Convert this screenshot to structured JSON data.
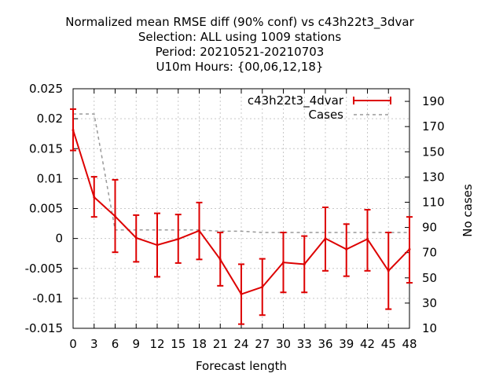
{
  "chart_data": {
    "type": "line",
    "title_lines": [
      "Normalized mean RMSE diff (90% conf) vs c43h22t3_3dvar",
      "Selection: ALL using  1009 stations",
      "Period: 20210521-20210703",
      "U10m   Hours: {00,06,12,18}"
    ],
    "xlabel": "Forecast length",
    "ylabel": "",
    "y2label": "No cases",
    "x": [
      0,
      3,
      6,
      9,
      12,
      15,
      18,
      21,
      24,
      27,
      30,
      33,
      36,
      39,
      42,
      45,
      48
    ],
    "xlim": [
      0,
      48
    ],
    "ylim": [
      -0.015,
      0.025
    ],
    "y2lim": [
      10,
      200
    ],
    "xticks": [
      "0",
      "3",
      "6",
      "9",
      "12",
      "15",
      "18",
      "21",
      "24",
      "27",
      "30",
      "33",
      "36",
      "39",
      "42",
      "45",
      "48"
    ],
    "yticks": [
      {
        "v": 0.025,
        "label": "0.025"
      },
      {
        "v": 0.02,
        "label": "0.02"
      },
      {
        "v": 0.015,
        "label": "0.015"
      },
      {
        "v": 0.01,
        "label": "0.01"
      },
      {
        "v": 0.005,
        "label": "0.005"
      },
      {
        "v": 0,
        "label": "0"
      },
      {
        "v": -0.005,
        "label": "-0.005"
      },
      {
        "v": -0.01,
        "label": "-0.01"
      },
      {
        "v": -0.015,
        "label": "-0.015"
      }
    ],
    "y2ticks": [
      {
        "v": 190,
        "label": "190"
      },
      {
        "v": 170,
        "label": "170"
      },
      {
        "v": 150,
        "label": "150"
      },
      {
        "v": 130,
        "label": "130"
      },
      {
        "v": 110,
        "label": "110"
      },
      {
        "v": 90,
        "label": "90"
      },
      {
        "v": 70,
        "label": "70"
      },
      {
        "v": 50,
        "label": "50"
      },
      {
        "v": 30,
        "label": "30"
      },
      {
        "v": 10,
        "label": "10"
      }
    ],
    "grid": true,
    "legend_position": "top-right",
    "series": [
      {
        "name": "c43h22t3_4dvar",
        "color": "#dd0000",
        "values": [
          0.0181,
          0.0069,
          0.0037,
          0.0001,
          -0.0011,
          -0.0001,
          0.0013,
          -0.0035,
          -0.0093,
          -0.0081,
          -0.004,
          -0.0043,
          0.0,
          -0.0018,
          -0.0001,
          -0.0054,
          -0.0018
        ],
        "err_low": [
          0.0147,
          0.0036,
          -0.0023,
          -0.0039,
          -0.0064,
          -0.0041,
          -0.0035,
          -0.0079,
          -0.0143,
          -0.0128,
          -0.009,
          -0.009,
          -0.0054,
          -0.0063,
          -0.0054,
          -0.0118,
          -0.0074
        ],
        "err_high": [
          0.0216,
          0.0103,
          0.0098,
          0.0039,
          0.0042,
          0.004,
          0.006,
          0.001,
          -0.0043,
          -0.0034,
          0.001,
          0.0004,
          0.0052,
          0.0024,
          0.0048,
          0.001,
          0.0036
        ]
      },
      {
        "name": "Cases",
        "axis": "right",
        "color": "#999999",
        "dash": true,
        "values": [
          180,
          180,
          88,
          88,
          88,
          88,
          88,
          87,
          87,
          86,
          86,
          86,
          86,
          86,
          86,
          86,
          86
        ]
      }
    ]
  }
}
